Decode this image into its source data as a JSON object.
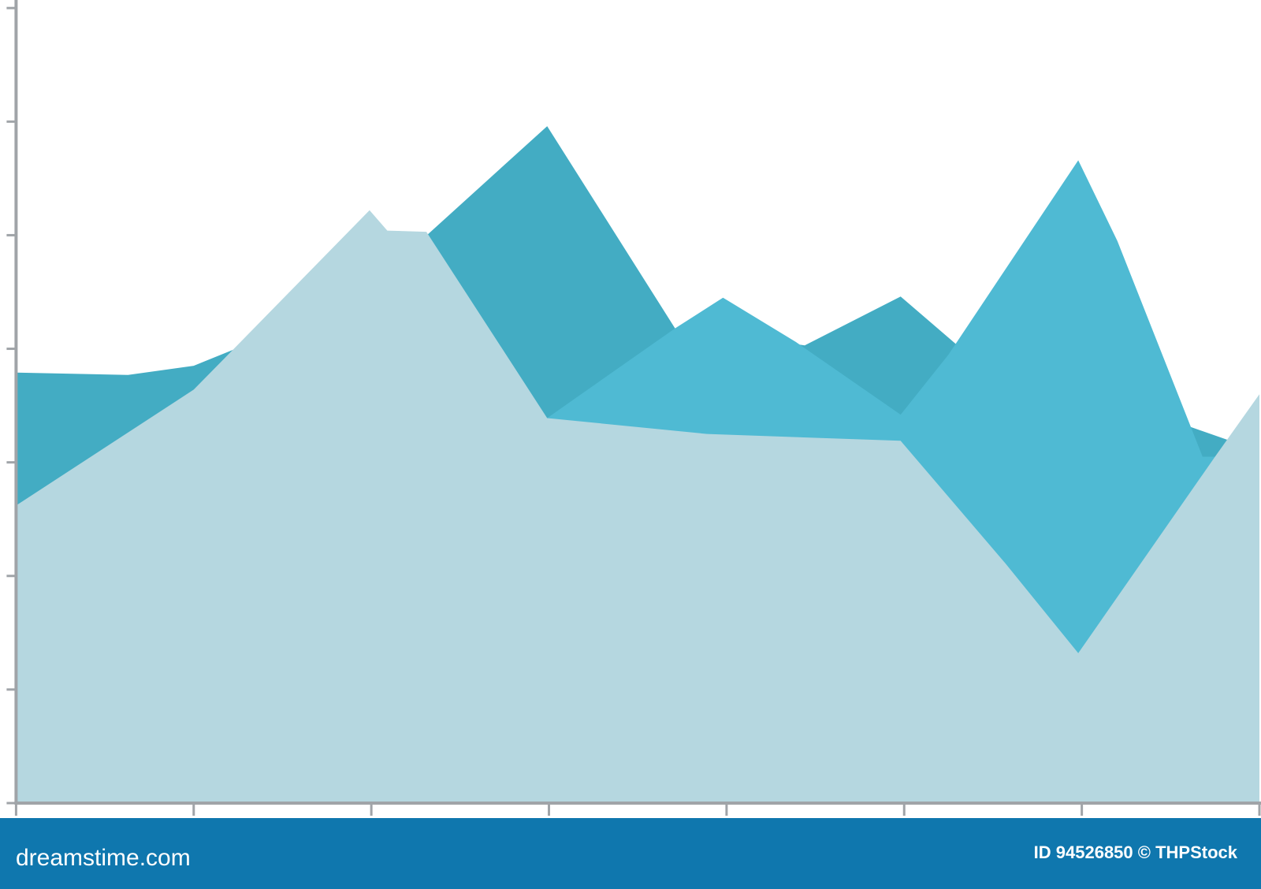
{
  "chart_data": {
    "type": "area",
    "xlim": [
      0,
      7
    ],
    "xticks": [
      0,
      1,
      2,
      3,
      4,
      5,
      6,
      7
    ],
    "ylim": [
      0,
      7
    ],
    "yticks": [
      0,
      1,
      2,
      3,
      4,
      5,
      6,
      7
    ],
    "series": [
      {
        "color": "#43acc3",
        "x": [
          0,
          0.63,
          1.0,
          1.22,
          2.2,
          2.99,
          3.71,
          4.44,
          4.98,
          5.3,
          7.0
        ],
        "values": [
          3.79,
          3.77,
          3.85,
          3.99,
          4.84,
          5.96,
          4.18,
          4.03,
          4.46,
          4.03,
          3.1
        ]
      },
      {
        "color": "#4fbad3",
        "x": [
          0,
          2.99,
          3.71,
          3.98,
          4.39,
          4.98,
          5.25,
          5.98,
          6.2,
          6.68,
          7.0
        ],
        "values": [
          2.62,
          3.39,
          4.18,
          4.45,
          4.06,
          3.42,
          3.95,
          5.66,
          4.95,
          3.05,
          3.05
        ]
      },
      {
        "color": "#b5d7e0",
        "x": [
          0,
          1.0,
          1.22,
          1.99,
          2.09,
          2.31,
          2.99,
          3.89,
          4.98,
          5.57,
          5.98,
          6.75,
          7.0
        ],
        "values": [
          2.62,
          3.64,
          3.99,
          5.22,
          5.04,
          5.03,
          3.39,
          3.25,
          3.19,
          2.11,
          1.32,
          3.05,
          3.6
        ]
      }
    ]
  },
  "footer": {
    "site": "dreamstime.com",
    "id": "ID 94526850 © THPStock"
  }
}
